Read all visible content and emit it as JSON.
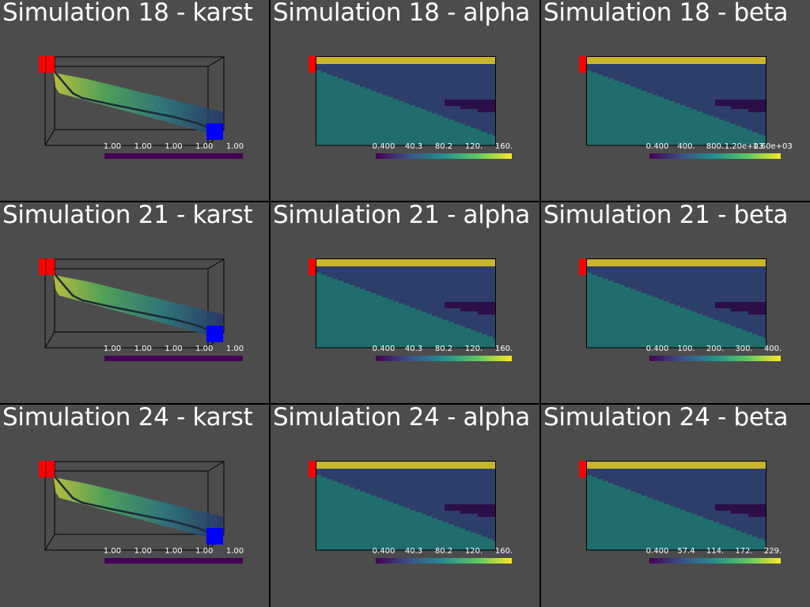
{
  "panels": [
    {
      "id": "sim18-karst",
      "title": "Simulation 18 - karst",
      "type": "karst",
      "colorbar": {
        "ticks": [
          "1.00",
          "1.00",
          "1.00",
          "1.00",
          "1.00"
        ],
        "colormap": "constant-purple"
      }
    },
    {
      "id": "sim18-alpha",
      "title": "Simulation 18 - alpha",
      "type": "field",
      "colorbar": {
        "ticks": [
          "0.400",
          "40.3",
          "80.2",
          "120.",
          "160."
        ],
        "colormap": "viridis"
      }
    },
    {
      "id": "sim18-beta",
      "title": "Simulation 18 - beta",
      "type": "field",
      "colorbar": {
        "ticks": [
          "0.400",
          "400.",
          "800.",
          "1.20e+03",
          "1.60e+03"
        ],
        "colormap": "viridis"
      }
    },
    {
      "id": "sim21-karst",
      "title": "Simulation 21 - karst",
      "type": "karst",
      "colorbar": {
        "ticks": [
          "1.00",
          "1.00",
          "1.00",
          "1.00",
          "1.00"
        ],
        "colormap": "constant-purple"
      }
    },
    {
      "id": "sim21-alpha",
      "title": "Simulation 21 - alpha",
      "type": "field",
      "colorbar": {
        "ticks": [
          "0.400",
          "40.3",
          "80.2",
          "120.",
          "160."
        ],
        "colormap": "viridis"
      }
    },
    {
      "id": "sim21-beta",
      "title": "Simulation 21 - beta",
      "type": "field",
      "colorbar": {
        "ticks": [
          "0.400",
          "100.",
          "200.",
          "300.",
          "400."
        ],
        "colormap": "viridis"
      }
    },
    {
      "id": "sim24-karst",
      "title": "Simulation 24 - karst",
      "type": "karst",
      "colorbar": {
        "ticks": [
          "1.00",
          "1.00",
          "1.00",
          "1.00",
          "1.00"
        ],
        "colormap": "constant-purple"
      }
    },
    {
      "id": "sim24-alpha",
      "title": "Simulation 24 - alpha",
      "type": "field",
      "colorbar": {
        "ticks": [
          "0.400",
          "40.3",
          "80.2",
          "120.",
          "160."
        ],
        "colormap": "viridis"
      }
    },
    {
      "id": "sim24-beta",
      "title": "Simulation 24 - beta",
      "type": "field",
      "colorbar": {
        "ticks": [
          "0.400",
          "57.4",
          "114.",
          "172.",
          "229."
        ],
        "colormap": "viridis"
      }
    }
  ],
  "colors": {
    "panel_background": "#4c4c4c",
    "separator": "#000000",
    "inlet_marker": "#ff0000",
    "outlet_marker": "#0000ff",
    "layer_top": "#c9b52a",
    "layer_upper": "#2e3e6b",
    "layer_lower": "#206d6e",
    "layer_pocket": "#2c0f48",
    "karst_bar": "#440154"
  }
}
